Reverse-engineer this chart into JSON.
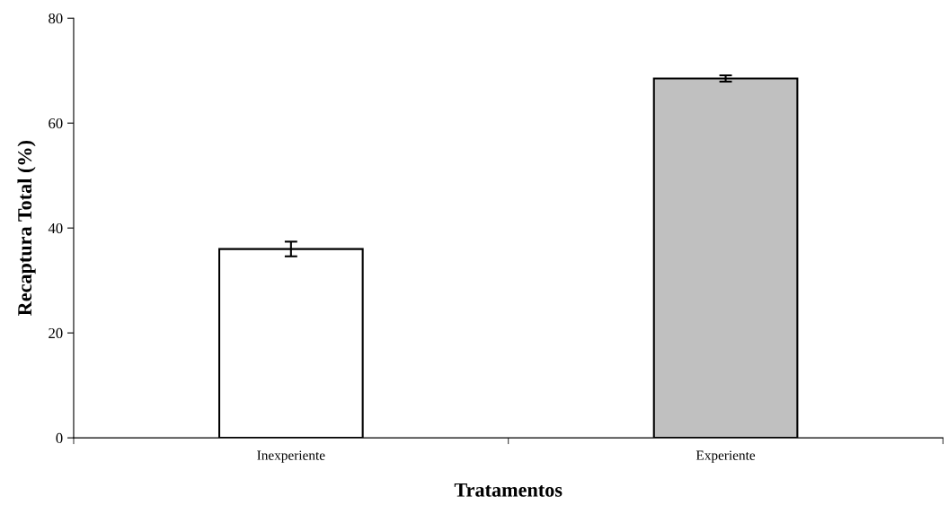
{
  "chart_data": {
    "type": "bar",
    "xlabel": "Tratamentos",
    "ylabel": "Recaptura Total (%)",
    "categories": [
      "Inexperiente",
      "Experiente"
    ],
    "values": [
      36.0,
      68.5
    ],
    "colors": [
      "#ffffff",
      "#c0c0c0"
    ],
    "errors": [
      1.4,
      0.6
    ],
    "ylim": [
      0,
      80
    ],
    "yticks": [
      0,
      20,
      40,
      60,
      80
    ],
    "grid": false,
    "legend": false
  }
}
